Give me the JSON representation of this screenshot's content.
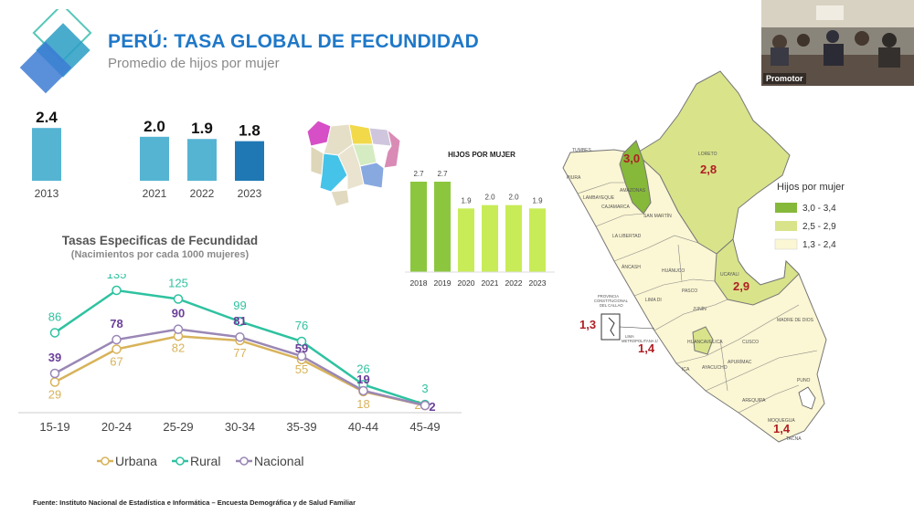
{
  "header": {
    "title": "PERÚ: TASA GLOBAL DE FECUNDIDAD",
    "subtitle": "Promedio de hijos por mujer"
  },
  "colors": {
    "title_blue": "#1f78c8",
    "bar_light": "#56b4d3",
    "bar_dark": "#1f78b4",
    "urbana": "#d8b35a",
    "rural": "#2ec2a0",
    "nacional": "#9a87b5",
    "green_dark": "#8cc63f",
    "green_light": "#c8ec57",
    "map_high": "#86b83a",
    "map_mid": "#d9e38a",
    "map_low": "#fbf6d3"
  },
  "chart_data": [
    {
      "id": "tgf",
      "type": "bar",
      "categories": [
        "2013",
        "2021",
        "2022",
        "2023"
      ],
      "values": [
        2.4,
        2.0,
        1.9,
        1.8
      ],
      "value_labels": [
        "2.4",
        "2.0",
        "1.9",
        "1.8"
      ],
      "ylim": [
        0,
        2.6
      ]
    },
    {
      "id": "tef",
      "type": "line",
      "title": "Tasas Especificas de Fecundidad",
      "subtitle": "(Nacimientos por cada 1000 mujeres)",
      "categories": [
        "15-19",
        "20-24",
        "25-29",
        "30-34",
        "35-39",
        "40-44",
        "45-49"
      ],
      "ylim": [
        0,
        140
      ],
      "grid": false,
      "legend": "bottom",
      "series": [
        {
          "name": "Urbana",
          "values": [
            29,
            67,
            82,
            77,
            55,
            18,
            2
          ],
          "labels": [
            "29",
            "67",
            "82",
            "77",
            "55",
            "18",
            "2"
          ]
        },
        {
          "name": "Rural",
          "values": [
            86,
            135,
            125,
            99,
            76,
            26,
            3
          ],
          "labels": [
            "86",
            "135",
            "125",
            "99",
            "76",
            "26",
            "3"
          ]
        },
        {
          "name": "Nacional",
          "values": [
            39,
            78,
            90,
            81,
            59,
            19,
            2
          ],
          "labels": [
            "39",
            "78",
            "90",
            "81",
            "59",
            "19",
            "2"
          ]
        }
      ]
    },
    {
      "id": "hpm",
      "type": "bar",
      "title": "HIJOS POR MUJER",
      "categories": [
        "2018",
        "2019",
        "2020",
        "2021",
        "2022",
        "2023"
      ],
      "values": [
        2.7,
        2.7,
        1.9,
        2.0,
        2.0,
        1.9
      ],
      "value_labels": [
        "2.7",
        "2.7",
        "1.9",
        "2.0",
        "2.0",
        "1.9"
      ],
      "ylim": [
        0,
        3.0
      ]
    }
  ],
  "map": {
    "legend_title": "Hijos por mujer",
    "legend_items": [
      "3,0 - 3,4",
      "2,5 - 2,9",
      "1,3 - 2,4"
    ],
    "values": {
      "amazonas": "3,0",
      "loreto": "2,8",
      "ucayali": "2,9",
      "callao": "1,3",
      "lima": "1,4",
      "moquegua": "1,4"
    },
    "region_labels": {
      "tumbes": "TUMBES",
      "piura": "PIURA",
      "lambayeque": "LAMBAYEQUE",
      "cajamarca": "CAJAMARCA",
      "amazonas": "AMAZONAS",
      "loreto": "LORETO",
      "san_martin": "SAN MARTÍN",
      "la_libertad": "LA LIBERTAD",
      "ancash": "ÁNCASH",
      "huanuco": "HUÁNUCO",
      "pasco": "PASCO",
      "ucayali": "UCAYALI",
      "lima_di": "LIMA DI",
      "junin": "JUNÍN",
      "madre_de_dios": "MADRE DE DIOS",
      "cusco": "CUSCO",
      "huancavelica": "HUANCAVELICA",
      "ica": "ICA",
      "ayacucho": "AYACUCHO",
      "apurimac": "APURÍMAC",
      "puno": "PUNO",
      "arequipa": "AREQUIPA",
      "moquegua": "MOQUEGUA",
      "tacna": "TACNA",
      "callao": "PROVINCIA CONSTITUCIONAL DEL CALLAO",
      "lima_metro": "LIMA METROPOLITANA 1/"
    }
  },
  "video": {
    "label": "Promotor"
  },
  "footer": {
    "source": "Fuente: Instituto Nacional de Estadística e Informática – Encuesta Demográfica y de Salud Familiar"
  }
}
